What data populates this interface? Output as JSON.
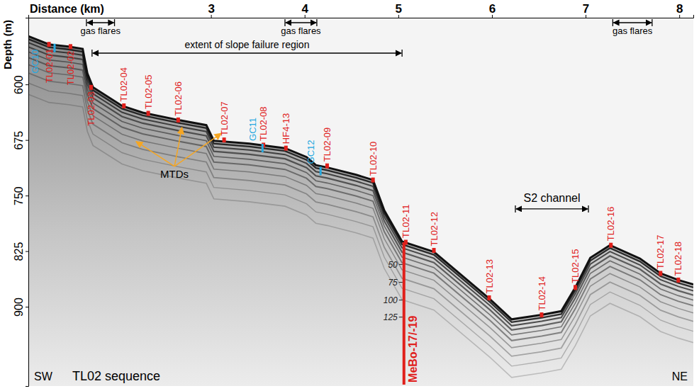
{
  "chart_data": {
    "type": "profile",
    "title": "TL02 sequence",
    "x_label": "Distance (km)",
    "y_label": "Depth (m)",
    "xlim": [
      1.05,
      8.15
    ],
    "xticks": [
      3,
      4,
      5,
      6,
      7,
      8
    ],
    "ylim": [
      510,
      1007
    ],
    "yticks": [
      600,
      675,
      750,
      825,
      900
    ],
    "grid": false,
    "color": "#111111",
    "x": [
      1.05,
      1.27,
      1.48,
      1.63,
      1.68,
      1.74,
      2.05,
      2.27,
      2.65,
      2.95,
      3.03,
      3.41,
      3.79,
      4.02,
      4.12,
      4.24,
      4.55,
      4.73,
      4.85,
      5.04,
      5.38,
      5.98,
      6.21,
      6.53,
      6.74,
      6.89,
      7.05,
      7.26,
      7.58,
      7.8,
      7.99,
      8.15
    ],
    "values": [
      535,
      546,
      549,
      552,
      585,
      604,
      629,
      638,
      648,
      655,
      676,
      680,
      686,
      698,
      709,
      712,
      722,
      729,
      770,
      812,
      826,
      890,
      917,
      911,
      906,
      874,
      834,
      817,
      835,
      855,
      864,
      870
    ],
    "stations": {
      "color": "#e0201b",
      "points": [
        {
          "label": "TL02-01",
          "x": 1.27,
          "y": 546
        },
        {
          "label": "TL02-02",
          "x": 1.5,
          "y": 549
        },
        {
          "label": "TL02-03",
          "x": 1.72,
          "y": 604
        },
        {
          "label": "TL02-04",
          "x": 2.07,
          "y": 629
        },
        {
          "label": "TL02-05",
          "x": 2.33,
          "y": 639
        },
        {
          "label": "TL02-06",
          "x": 2.65,
          "y": 648
        },
        {
          "label": "TL02-07",
          "x": 3.14,
          "y": 675
        },
        {
          "label": "TL02-08",
          "x": 3.56,
          "y": 682
        },
        {
          "label": "HF4-13",
          "x": 3.8,
          "y": 686
        },
        {
          "label": "TL02-09",
          "x": 4.24,
          "y": 710
        },
        {
          "label": "TL02-10",
          "x": 4.73,
          "y": 729
        },
        {
          "label": "TL02-11",
          "x": 5.08,
          "y": 813
        },
        {
          "label": "TL02-12",
          "x": 5.38,
          "y": 824
        },
        {
          "label": "TL02-13",
          "x": 5.97,
          "y": 888
        },
        {
          "label": "TL02-14",
          "x": 6.53,
          "y": 911
        },
        {
          "label": "TL02-15",
          "x": 6.89,
          "y": 874
        },
        {
          "label": "TL02-16",
          "x": 7.27,
          "y": 817
        },
        {
          "label": "TL02-17",
          "x": 7.8,
          "y": 855
        },
        {
          "label": "TL02-18",
          "x": 7.99,
          "y": 864
        }
      ]
    },
    "cores": {
      "color": "#26a9e0",
      "points": [
        {
          "label": "GC10",
          "x": 1.33,
          "y": 547
        },
        {
          "label": "GC11",
          "x": 3.55,
          "y": 682
        },
        {
          "label": "GC12",
          "x": 4.17,
          "y": 713
        }
      ]
    },
    "gas_flares": {
      "label": "gas flares",
      "ranges": [
        [
          1.67,
          1.97
        ],
        [
          3.79,
          4.13
        ],
        [
          7.29,
          7.71
        ]
      ]
    },
    "slope_failure": {
      "label": "extent of slope failure region",
      "range": [
        1.73,
        5.04
      ]
    },
    "channel": {
      "label": "S2 channel",
      "range": [
        6.25,
        7.03
      ],
      "y": 768
    },
    "mtds": {
      "label": "MTDs",
      "x": 2.61,
      "y": 724,
      "color": "#f5a623",
      "targets": [
        {
          "x": 2.2,
          "y": 677
        },
        {
          "x": 2.69,
          "y": 658
        },
        {
          "x": 3.11,
          "y": 666
        }
      ]
    },
    "borehole": {
      "label": "MeBo-17/-19",
      "x": 5.06,
      "y": [
        813,
        1005
      ],
      "color": "#e0201b",
      "ticks": [
        50,
        75,
        100,
        125
      ],
      "tick_depths": [
        843,
        867,
        891,
        914
      ]
    },
    "corners": {
      "left": "SW",
      "right": "NE"
    }
  }
}
